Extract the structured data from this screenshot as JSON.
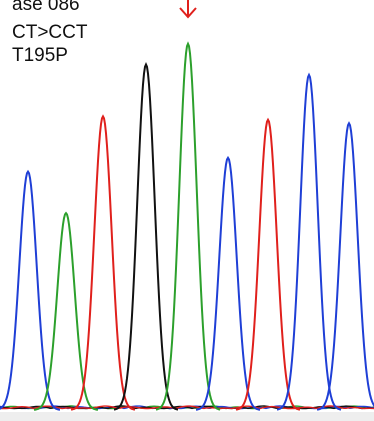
{
  "annotation": {
    "case_line": "ase 086",
    "mutation_line": "CT>CCT",
    "aa_line": "T195P"
  },
  "chart_data": {
    "type": "line",
    "title": "",
    "xlabel": "",
    "ylabel": "",
    "grid": false,
    "legend": "none",
    "trace_colors": {
      "A": "#2ca02c",
      "C": "#1f3fd6",
      "G": "#111111",
      "T": "#e0201c"
    },
    "mutation_marker": {
      "color": "#e0201c",
      "peak_index": 4
    },
    "peaks": [
      {
        "base": "C",
        "height": 0.69
      },
      {
        "base": "A",
        "height": 0.57
      },
      {
        "base": "T",
        "height": 0.85
      },
      {
        "base": "G",
        "height": 1.0
      },
      {
        "base": "A",
        "height": 1.06
      },
      {
        "base": "C",
        "height": 0.73
      },
      {
        "base": "T",
        "height": 0.84
      },
      {
        "base": "C",
        "height": 0.97
      },
      {
        "base": "C",
        "height": 0.83
      }
    ],
    "y_range": [
      0,
      1.1
    ]
  }
}
